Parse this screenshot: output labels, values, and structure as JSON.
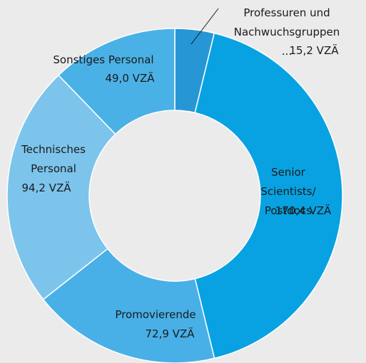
{
  "chart_data": {
    "type": "donut",
    "categories": [
      "Professuren und\nNachwuchsgruppen ...",
      "Senior Scientists/\nPostdocs",
      "Promovierende",
      "Technisches\nPersonal",
      "Sonstiges Personal"
    ],
    "values": [
      15.2,
      170.4,
      72.9,
      94.2,
      49.0
    ],
    "value_labels": [
      "15,2 VZÄ",
      "170,4 VZÄ",
      "72,9 VZÄ",
      "94,2 VZÄ",
      "49,0 VZÄ"
    ],
    "colors": [
      "#2796d4",
      "#08a2e2",
      "#48b0e7",
      "#7cc4ec",
      "#4ab1e6"
    ]
  }
}
